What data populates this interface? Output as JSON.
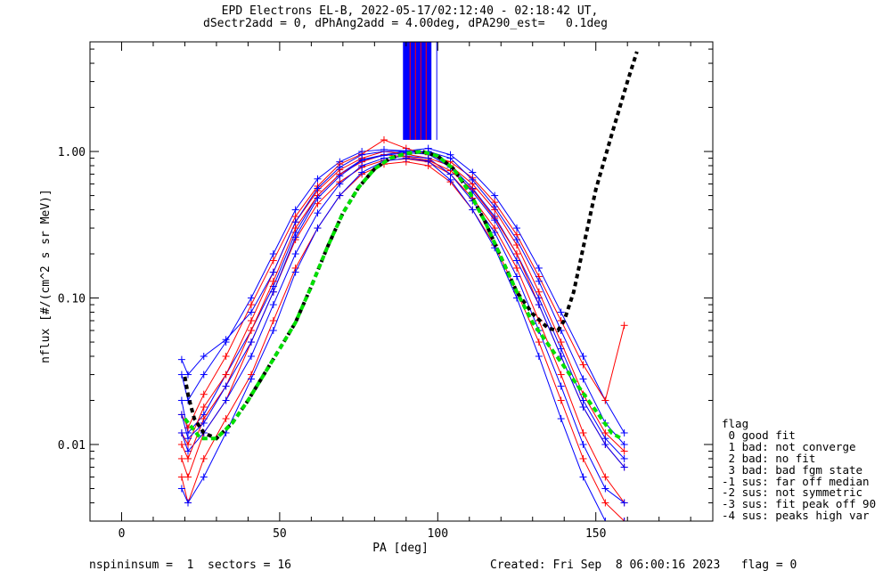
{
  "header": {
    "title_line1": "EPD Electrons EL-B, 2022-05-17/02:12:40 - 02:18:42 UT,",
    "title_line2": "dSectr2add = 0, dPhAng2add = 4.00deg, dPA290_est=   0.1deg"
  },
  "chart_data": {
    "type": "line",
    "xlabel": "PA [deg]",
    "ylabel": "nflux [#/(cm^2 s sr MeV)]",
    "xlim": [
      -10,
      187
    ],
    "ylim": [
      0.003,
      5.6
    ],
    "yscale": "log",
    "x_ticks": [
      0,
      50,
      100,
      150
    ],
    "x_tick_labels": [
      "0",
      "50",
      "100",
      "150"
    ],
    "y_ticks": [
      0.01,
      0.1,
      1.0
    ],
    "y_tick_labels": [
      "0.01",
      "0.10",
      "1.00"
    ],
    "grid": false,
    "colors": {
      "red_series": "#ff0000",
      "blue_series": "#0000ff",
      "fit_green": "#00e000",
      "fit_black": "#000000"
    },
    "sample_pa": [
      19,
      21,
      26,
      33,
      41,
      48,
      55,
      62,
      69,
      76,
      83,
      90,
      97,
      104,
      111,
      118,
      125,
      132,
      139,
      146,
      153,
      159
    ],
    "series_red": [
      {
        "values": [
          0.008,
          0.006,
          0.012,
          0.02,
          0.05,
          0.11,
          0.25,
          0.44,
          0.62,
          0.78,
          0.87,
          0.89,
          0.85,
          0.7,
          0.48,
          0.3,
          0.16,
          0.07,
          0.03,
          0.012,
          0.006,
          0.004
        ]
      },
      {
        "values": [
          0.012,
          0.01,
          0.018,
          0.03,
          0.07,
          0.15,
          0.33,
          0.54,
          0.75,
          0.9,
          1.0,
          0.96,
          0.9,
          0.8,
          0.6,
          0.4,
          0.23,
          0.11,
          0.05,
          0.022,
          0.012,
          0.009
        ]
      },
      {
        "values": [
          0.006,
          0.004,
          0.008,
          0.015,
          0.03,
          0.07,
          0.16,
          0.3,
          0.5,
          0.7,
          0.82,
          0.85,
          0.8,
          0.62,
          0.4,
          0.23,
          0.11,
          0.05,
          0.02,
          0.008,
          0.004,
          0.003
        ]
      },
      {
        "values": [
          0.016,
          0.013,
          0.022,
          0.04,
          0.09,
          0.18,
          0.36,
          0.58,
          0.82,
          0.96,
          1.2,
          1.05,
          0.95,
          0.85,
          0.66,
          0.45,
          0.27,
          0.14,
          0.07,
          0.035,
          0.02,
          0.065
        ]
      },
      {
        "values": [
          0.01,
          0.008,
          0.015,
          0.025,
          0.06,
          0.13,
          0.3,
          0.5,
          0.7,
          0.85,
          0.95,
          0.92,
          0.87,
          0.74,
          0.55,
          0.35,
          0.2,
          0.09,
          0.04,
          0.018,
          0.01,
          0.007
        ]
      }
    ],
    "series_blue": [
      {
        "values": [
          0.02,
          0.012,
          0.016,
          0.03,
          0.06,
          0.12,
          0.28,
          0.5,
          0.7,
          0.88,
          0.95,
          1.0,
          0.98,
          0.8,
          0.56,
          0.36,
          0.2,
          0.1,
          0.045,
          0.02,
          0.011,
          0.008
        ]
      },
      {
        "values": [
          0.03,
          0.02,
          0.03,
          0.05,
          0.1,
          0.2,
          0.4,
          0.65,
          0.85,
          1.0,
          1.03,
          1.01,
          1.05,
          0.95,
          0.72,
          0.5,
          0.3,
          0.16,
          0.08,
          0.04,
          0.02,
          0.012
        ]
      },
      {
        "values": [
          0.012,
          0.009,
          0.012,
          0.02,
          0.04,
          0.09,
          0.2,
          0.38,
          0.6,
          0.8,
          0.9,
          0.93,
          0.9,
          0.7,
          0.46,
          0.28,
          0.14,
          0.06,
          0.025,
          0.01,
          0.005,
          0.004
        ]
      },
      {
        "values": [
          0.038,
          0.03,
          0.04,
          0.052,
          0.08,
          0.15,
          0.33,
          0.56,
          0.78,
          0.95,
          1.0,
          1.0,
          1.0,
          0.9,
          0.64,
          0.42,
          0.25,
          0.13,
          0.06,
          0.028,
          0.014,
          0.01
        ]
      },
      {
        "values": [
          0.005,
          0.004,
          0.006,
          0.012,
          0.028,
          0.06,
          0.15,
          0.3,
          0.5,
          0.72,
          0.86,
          0.9,
          0.86,
          0.64,
          0.4,
          0.22,
          0.1,
          0.04,
          0.015,
          0.006,
          0.003,
          0.003
        ]
      },
      {
        "values": [
          0.016,
          0.011,
          0.014,
          0.025,
          0.05,
          0.11,
          0.26,
          0.48,
          0.68,
          0.87,
          0.94,
          0.98,
          0.96,
          0.78,
          0.53,
          0.34,
          0.18,
          0.09,
          0.04,
          0.018,
          0.01,
          0.007
        ]
      }
    ],
    "fit_green": {
      "pa": [
        20,
        25,
        30,
        35,
        40,
        45,
        50,
        55,
        60,
        65,
        70,
        75,
        80,
        85,
        90,
        95,
        100,
        105,
        110,
        115,
        120,
        125,
        130,
        135,
        140,
        145,
        150,
        155,
        158
      ],
      "values": [
        0.015,
        0.011,
        0.011,
        0.014,
        0.02,
        0.03,
        0.045,
        0.068,
        0.12,
        0.22,
        0.38,
        0.57,
        0.76,
        0.9,
        0.97,
        1.0,
        0.93,
        0.76,
        0.53,
        0.33,
        0.19,
        0.11,
        0.068,
        0.048,
        0.034,
        0.024,
        0.017,
        0.012,
        0.011
      ]
    },
    "fit_black": {
      "pa": [
        20,
        21,
        22,
        23,
        26,
        30,
        35,
        40,
        45,
        50,
        55,
        60,
        65,
        70,
        75,
        80,
        85,
        90,
        95,
        100,
        105,
        110,
        115,
        120,
        125,
        130,
        135,
        138,
        140,
        143,
        146,
        150,
        155,
        160,
        163
      ],
      "values": [
        0.029,
        0.022,
        0.018,
        0.015,
        0.012,
        0.011,
        0.014,
        0.02,
        0.03,
        0.045,
        0.068,
        0.12,
        0.22,
        0.38,
        0.57,
        0.76,
        0.9,
        0.97,
        1.0,
        0.93,
        0.76,
        0.53,
        0.33,
        0.19,
        0.11,
        0.078,
        0.062,
        0.06,
        0.07,
        0.11,
        0.22,
        0.55,
        1.3,
        3.0,
        4.8
      ]
    },
    "peak_band": {
      "pa_range": [
        89,
        98
      ],
      "y_range": [
        1.2,
        5.6
      ],
      "note_colors": [
        "#0000ff",
        "#ff0000"
      ]
    }
  },
  "legend": {
    "title": "flag",
    "items": [
      " 0 good fit",
      " 1 bad: not converge",
      " 2 bad: no fit",
      " 3 bad: bad fgm state",
      "-1 sus: far off median",
      "-2 sus: not symmetric",
      "-3 sus: fit peak off 90",
      "-4 sus: peaks high var"
    ]
  },
  "footer": {
    "left": "nspininsum =  1  sectors = 16",
    "right": "Created: Fri Sep  8 06:00:16 2023   flag = 0"
  }
}
